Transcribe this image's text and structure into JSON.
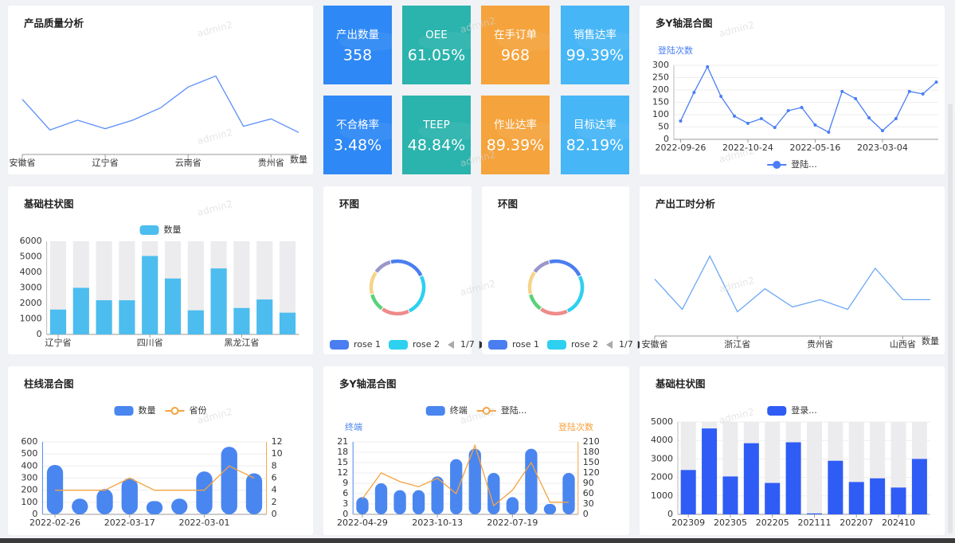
{
  "watermark": "admin2",
  "kpis": [
    {
      "label": "产出数量",
      "value": "358",
      "color": "#2e88f5"
    },
    {
      "label": "OEE",
      "value": "61.05%",
      "color": "#2bb3ad"
    },
    {
      "label": "在手订单",
      "value": "968",
      "color": "#f5a33c"
    },
    {
      "label": "销售达率",
      "value": "99.39%",
      "color": "#47b6f6"
    },
    {
      "label": "不合格率",
      "value": "3.48%",
      "color": "#2e88f5"
    },
    {
      "label": "TEEP",
      "value": "48.84%",
      "color": "#2bb3ad"
    },
    {
      "label": "作业达率",
      "value": "89.39%",
      "color": "#f5a33c"
    },
    {
      "label": "目标达率",
      "value": "82.19%",
      "color": "#47b6f6"
    }
  ],
  "chart_data": [
    {
      "type": "line",
      "title": "产品质量分析",
      "x_name": "数量",
      "categories": [
        "安徽省",
        null,
        null,
        "辽宁省",
        null,
        null,
        "云南省",
        null,
        null,
        "贵州省",
        null
      ],
      "series": [
        {
          "color": "#5b8ff9",
          "values": [
            45,
            20,
            28,
            21,
            28,
            38,
            55,
            64,
            23,
            29,
            18
          ]
        }
      ],
      "ylim": [
        0,
        100
      ]
    },
    {
      "type": "line",
      "title": "多Y轴混合图",
      "y_name": "登陆次数",
      "categories": [
        "2022-09-26",
        null,
        null,
        null,
        null,
        "2022-10-24",
        null,
        null,
        null,
        null,
        "2022-05-16",
        null,
        null,
        null,
        null,
        "2023-03-04",
        null,
        null,
        null,
        null
      ],
      "series": [
        {
          "name": "登陆...",
          "color": "#4a7ef5",
          "values": [
            74,
            190,
            294,
            174,
            94,
            65,
            84,
            48,
            116,
            129,
            58,
            29,
            194,
            165,
            87,
            35,
            84,
            194,
            184,
            232
          ]
        }
      ],
      "ylim": [
        0,
        300
      ],
      "yticks": [
        0,
        50,
        100,
        150,
        200,
        250,
        300
      ],
      "grid": true,
      "markers": true,
      "legend": "bottom"
    },
    {
      "type": "bar",
      "title": "基础柱状图",
      "categories": [
        "辽宁省",
        null,
        null,
        null,
        "四川省",
        null,
        null,
        null,
        "黑龙江省",
        null,
        null
      ],
      "series": [
        {
          "name": "数量",
          "color": "#4cbdee",
          "values": [
            1600,
            3000,
            2200,
            2200,
            5050,
            3600,
            1550,
            4250,
            1700,
            2250,
            1400
          ]
        }
      ],
      "ylim": [
        0,
        6000
      ],
      "yticks": [
        0,
        1000,
        2000,
        3000,
        4000,
        5000,
        6000
      ],
      "grid": false,
      "legend": "top",
      "background": "#ececee"
    },
    {
      "type": "donut",
      "title": "环图",
      "categories": [
        "rose 1",
        "rose 2",
        null,
        null,
        null,
        null
      ],
      "values": [
        22,
        25,
        17,
        11,
        14,
        11
      ],
      "colors": [
        "#4a7ef0",
        "#2ed0f0",
        "#f08a8a",
        "#5ad17a",
        "#f5d48a",
        "#9a97c9"
      ],
      "legend_page": "1/7"
    },
    {
      "type": "donut",
      "title": "环图",
      "categories": [
        "rose 1",
        "rose 2",
        null,
        null,
        null,
        null
      ],
      "values": [
        22,
        25,
        17,
        11,
        14,
        11
      ],
      "colors": [
        "#4a7ef0",
        "#2ed0f0",
        "#f08a8a",
        "#5ad17a",
        "#f5d48a",
        "#9a97c9"
      ],
      "legend_page": "1/7"
    },
    {
      "type": "line",
      "title": "产出工时分析",
      "x_name": "数量",
      "categories": [
        "安徽省",
        null,
        null,
        "浙江省",
        null,
        null,
        "贵州省",
        null,
        null,
        "山西省",
        null
      ],
      "series": [
        {
          "color": "#6aa8f5",
          "values": [
            47,
            22,
            66,
            20,
            39,
            24,
            30,
            22,
            56,
            30,
            30
          ]
        }
      ],
      "ylim": [
        0,
        100
      ]
    },
    {
      "type": "combo",
      "title": "柱线混合图",
      "categories": [
        "2022-02-26",
        null,
        null,
        "2022-03-17",
        null,
        null,
        "2022-03-01",
        null,
        null
      ],
      "series": [
        {
          "name": "数量",
          "type": "bar",
          "color": "#4a86f0",
          "values": [
            410,
            130,
            210,
            300,
            110,
            130,
            355,
            560,
            340
          ]
        },
        {
          "name": "省份",
          "type": "line",
          "axis": "y2",
          "color": "#f5a33f",
          "values": [
            4,
            4,
            4,
            6,
            4,
            4,
            4,
            8,
            6
          ]
        }
      ],
      "ylim": [
        0,
        600
      ],
      "yticks": [
        0,
        100,
        200,
        300,
        400,
        500,
        600
      ],
      "y2lim": [
        0,
        12
      ],
      "y2ticks": [
        0,
        2,
        4,
        6,
        8,
        10,
        12
      ],
      "grid": true,
      "legend": "top"
    },
    {
      "type": "combo",
      "title": "多Y轴混合图",
      "y_name": "终端",
      "y2_name": "登陆次数",
      "categories": [
        "2022-04-29",
        null,
        null,
        null,
        "2023-10-13",
        null,
        null,
        null,
        "2022-07-19",
        null,
        null,
        null
      ],
      "series": [
        {
          "name": "终端",
          "type": "bar",
          "color": "#4a86f0",
          "values": [
            5,
            9,
            7,
            7,
            11,
            16,
            19,
            12,
            5,
            19,
            3,
            12
          ]
        },
        {
          "name": "登陆...",
          "type": "line",
          "axis": "y2",
          "color": "#f5a33f",
          "values": [
            45,
            120,
            95,
            80,
            105,
            60,
            200,
            25,
            70,
            150,
            35,
            35
          ]
        }
      ],
      "ylim": [
        0,
        21
      ],
      "yticks": [
        0,
        3,
        6,
        9,
        12,
        15,
        18,
        21
      ],
      "y2lim": [
        0,
        210
      ],
      "y2ticks": [
        0,
        30,
        60,
        90,
        120,
        150,
        180,
        210
      ],
      "grid": true,
      "legend": "top"
    },
    {
      "type": "bar",
      "title": "基础柱状图",
      "categories": [
        "202309",
        null,
        "202305",
        null,
        "202205",
        null,
        "202111",
        null,
        "202207",
        null,
        "202410",
        null
      ],
      "series": [
        {
          "name": "登录...",
          "color": "#2f5cf5",
          "values": [
            2400,
            4650,
            2050,
            3850,
            1700,
            3900,
            50,
            2900,
            1750,
            1950,
            1450,
            3000
          ]
        }
      ],
      "ylim": [
        0,
        5000
      ],
      "yticks": [
        0,
        1000,
        2000,
        3000,
        4000,
        5000
      ],
      "grid": true,
      "legend": "top",
      "background": "#ececee"
    }
  ]
}
